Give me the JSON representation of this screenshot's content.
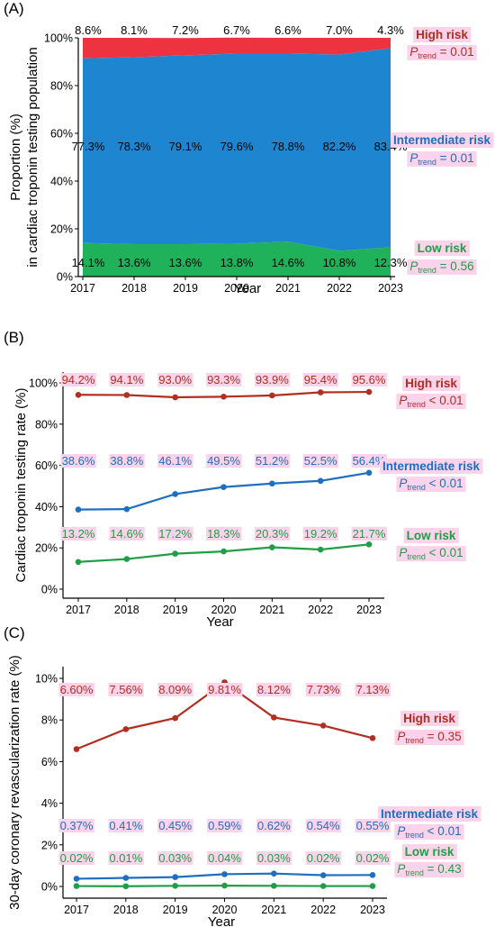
{
  "colors": {
    "high": "#b22e20",
    "intermediate": "#1e6fc0",
    "low": "#1f9e45",
    "area_high": "#ee3340",
    "area_intermediate": "#1e86d0",
    "area_low": "#20b25a",
    "label_bg": "#fbd3ea"
  },
  "chart_data": [
    {
      "panel": "(A)",
      "type": "area",
      "x": [
        2017,
        2018,
        2019,
        2020,
        2021,
        2022,
        2023
      ],
      "xlabel": "Year",
      "ylabel": "Proportion (%)\nin cardiac troponin testing population",
      "ylim": [
        0,
        100
      ],
      "yticks": [
        "0%",
        "20%",
        "40%",
        "60%",
        "80%",
        "100%"
      ],
      "stacked": true,
      "grid": false,
      "series": [
        {
          "name": "Low risk",
          "values": [
            14.1,
            13.6,
            13.6,
            13.8,
            14.6,
            10.8,
            12.3
          ],
          "labels": [
            "14.1%",
            "13.6%",
            "13.6%",
            "13.8%",
            "14.6%",
            "10.8%",
            "12.3%"
          ],
          "p_trend": "= 0.56"
        },
        {
          "name": "Intermediate risk",
          "values": [
            77.3,
            78.3,
            79.1,
            79.6,
            78.8,
            82.2,
            83.4
          ],
          "labels": [
            "77.3%",
            "78.3%",
            "79.1%",
            "79.6%",
            "78.8%",
            "82.2%",
            "83.4%"
          ],
          "p_trend": "= 0.01"
        },
        {
          "name": "High risk",
          "values": [
            8.6,
            8.1,
            7.2,
            6.7,
            6.6,
            7.0,
            4.3
          ],
          "labels": [
            "8.6%",
            "8.1%",
            "7.2%",
            "6.7%",
            "6.6%",
            "7.0%",
            "4.3%"
          ],
          "p_trend": "= 0.01"
        }
      ]
    },
    {
      "panel": "(B)",
      "type": "line",
      "x": [
        2017,
        2018,
        2019,
        2020,
        2021,
        2022,
        2023
      ],
      "xlabel": "Year",
      "ylabel": "Cardiac troponin testing rate (%)",
      "ylim": [
        0,
        100
      ],
      "yticks": [
        "0%",
        "20%",
        "40%",
        "60%",
        "80%",
        "100%"
      ],
      "grid": false,
      "series": [
        {
          "name": "High risk",
          "values": [
            94.2,
            94.1,
            93.0,
            93.3,
            93.9,
            95.4,
            95.6
          ],
          "labels": [
            "94.2%",
            "94.1%",
            "93.0%",
            "93.3%",
            "93.9%",
            "95.4%",
            "95.6%"
          ],
          "p_trend": "< 0.01"
        },
        {
          "name": "Intermediate risk",
          "values": [
            38.6,
            38.8,
            46.1,
            49.5,
            51.2,
            52.5,
            56.4
          ],
          "labels": [
            "38.6%",
            "38.8%",
            "46.1%",
            "49.5%",
            "51.2%",
            "52.5%",
            "56.4%"
          ],
          "p_trend": "< 0.01"
        },
        {
          "name": "Low risk",
          "values": [
            13.2,
            14.6,
            17.2,
            18.3,
            20.3,
            19.2,
            21.7
          ],
          "labels": [
            "13.2%",
            "14.6%",
            "17.2%",
            "18.3%",
            "20.3%",
            "19.2%",
            "21.7%"
          ],
          "p_trend": "< 0.01"
        }
      ]
    },
    {
      "panel": "(C)",
      "type": "line",
      "x": [
        2017,
        2018,
        2019,
        2020,
        2021,
        2022,
        2023
      ],
      "xlabel": "Year",
      "ylabel": "30-day coronary revascularization rate (%)",
      "ylim": [
        0,
        10
      ],
      "yticks": [
        "0%",
        "2%",
        "4%",
        "6%",
        "8%",
        "10%"
      ],
      "grid": false,
      "series": [
        {
          "name": "High risk",
          "values": [
            6.6,
            7.56,
            8.09,
            9.81,
            8.12,
            7.73,
            7.13
          ],
          "labels": [
            "6.60%",
            "7.56%",
            "8.09%",
            "9.81%",
            "8.12%",
            "7.73%",
            "7.13%"
          ],
          "p_trend": "= 0.35"
        },
        {
          "name": "Intermediate risk",
          "values": [
            0.37,
            0.41,
            0.45,
            0.59,
            0.62,
            0.54,
            0.55
          ],
          "labels": [
            "0.37%",
            "0.41%",
            "0.45%",
            "0.59%",
            "0.62%",
            "0.54%",
            "0.55%"
          ],
          "p_trend": "< 0.01"
        },
        {
          "name": "Low risk",
          "values": [
            0.02,
            0.01,
            0.03,
            0.04,
            0.03,
            0.02,
            0.02
          ],
          "labels": [
            "0.02%",
            "0.01%",
            "0.03%",
            "0.04%",
            "0.03%",
            "0.02%",
            "0.02%"
          ],
          "p_trend": "= 0.43"
        }
      ]
    }
  ]
}
